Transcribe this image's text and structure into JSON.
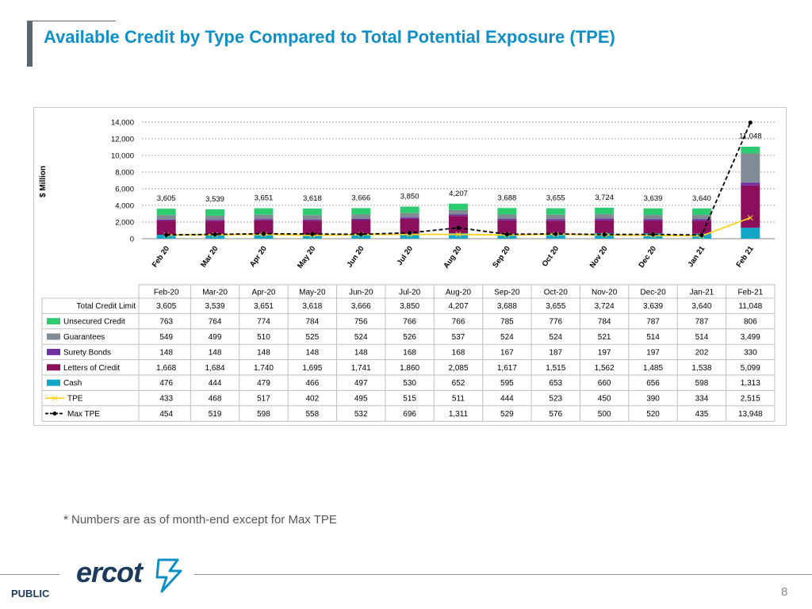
{
  "slide": {
    "title": "Available Credit by Type Compared to Total Potential Exposure (TPE)",
    "footnote": "* Numbers are as of month-end except for Max TPE",
    "footer_label": "PUBLIC",
    "page_number": "8",
    "logo_text": "ercot"
  },
  "colors": {
    "title": "#0f8fc7",
    "unsecured": "#2ecc71",
    "guarantees": "#808b94",
    "surety": "#7030a0",
    "loc": "#8b0f5c",
    "cash": "#12a7c6",
    "tpe": "#ffd21f",
    "maxtpe": "#000000"
  },
  "chart_data": {
    "type": "bar",
    "stacked": true,
    "ylabel": "$ Million",
    "ylim": [
      0,
      14000
    ],
    "yticks": [
      "0",
      "2,000",
      "4,000",
      "6,000",
      "8,000",
      "10,000",
      "12,000",
      "14,000"
    ],
    "categories": [
      "Feb 20",
      "Mar 20",
      "Apr 20",
      "May 20",
      "Jun 20",
      "Jul 20",
      "Aug 20",
      "Sep 20",
      "Oct 20",
      "Nov 20",
      "Dec 20",
      "Jan 21",
      "Feb 21"
    ],
    "table_headers": [
      "Feb-20",
      "Mar-20",
      "Apr-20",
      "May-20",
      "Jun-20",
      "Jul-20",
      "Aug-20",
      "Sep-20",
      "Oct-20",
      "Nov-20",
      "Dec-20",
      "Jan-21",
      "Feb-21"
    ],
    "total_label": "Total Credit Limit",
    "total_values": [
      "3,605",
      "3,539",
      "3,651",
      "3,618",
      "3,666",
      "3,850",
      "4,207",
      "3,688",
      "3,655",
      "3,724",
      "3,639",
      "3,640",
      "11,048"
    ],
    "totals": [
      3605,
      3539,
      3651,
      3618,
      3666,
      3850,
      4207,
      3688,
      3655,
      3724,
      3639,
      3640,
      11048
    ],
    "series": [
      {
        "key": "unsecured",
        "name": "Unsecured Credit",
        "kind": "bar",
        "values": [
          763,
          764,
          774,
          784,
          756,
          766,
          766,
          785,
          776,
          784,
          787,
          787,
          806
        ],
        "labels": [
          "763",
          "764",
          "774",
          "784",
          "756",
          "766",
          "766",
          "785",
          "776",
          "784",
          "787",
          "787",
          "806"
        ]
      },
      {
        "key": "guarantees",
        "name": "Guarantees",
        "kind": "bar",
        "values": [
          549,
          499,
          510,
          525,
          524,
          526,
          537,
          524,
          524,
          521,
          514,
          514,
          3499
        ],
        "labels": [
          "549",
          "499",
          "510",
          "525",
          "524",
          "526",
          "537",
          "524",
          "524",
          "521",
          "514",
          "514",
          "3,499"
        ]
      },
      {
        "key": "surety",
        "name": "Surety Bonds",
        "kind": "bar",
        "values": [
          148,
          148,
          148,
          148,
          148,
          168,
          168,
          167,
          187,
          197,
          197,
          202,
          330
        ],
        "labels": [
          "148",
          "148",
          "148",
          "148",
          "148",
          "168",
          "168",
          "167",
          "187",
          "197",
          "197",
          "202",
          "330"
        ]
      },
      {
        "key": "loc",
        "name": "Letters of Credit",
        "kind": "bar",
        "values": [
          1668,
          1684,
          1740,
          1695,
          1741,
          1860,
          2085,
          1617,
          1515,
          1562,
          1485,
          1538,
          5099
        ],
        "labels": [
          "1,668",
          "1,684",
          "1,740",
          "1,695",
          "1,741",
          "1,860",
          "2,085",
          "1,617",
          "1,515",
          "1,562",
          "1,485",
          "1,538",
          "5,099"
        ]
      },
      {
        "key": "cash",
        "name": "Cash",
        "kind": "bar",
        "values": [
          476,
          444,
          479,
          466,
          497,
          530,
          652,
          595,
          653,
          660,
          656,
          598,
          1313
        ],
        "labels": [
          "476",
          "444",
          "479",
          "466",
          "497",
          "530",
          "652",
          "595",
          "653",
          "660",
          "656",
          "598",
          "1,313"
        ]
      },
      {
        "key": "tpe",
        "name": "TPE",
        "kind": "line",
        "values": [
          433,
          468,
          517,
          402,
          495,
          515,
          511,
          444,
          523,
          450,
          390,
          334,
          2515
        ],
        "labels": [
          "433",
          "468",
          "517",
          "402",
          "495",
          "515",
          "511",
          "444",
          "523",
          "450",
          "390",
          "334",
          "2,515"
        ]
      },
      {
        "key": "maxtpe",
        "name": "Max TPE",
        "kind": "dashed-line",
        "values": [
          454,
          519,
          598,
          558,
          532,
          696,
          1311,
          529,
          576,
          500,
          520,
          435,
          13948
        ],
        "labels": [
          "454",
          "519",
          "598",
          "558",
          "532",
          "696",
          "1,311",
          "529",
          "576",
          "500",
          "520",
          "435",
          "13,948"
        ]
      }
    ]
  }
}
